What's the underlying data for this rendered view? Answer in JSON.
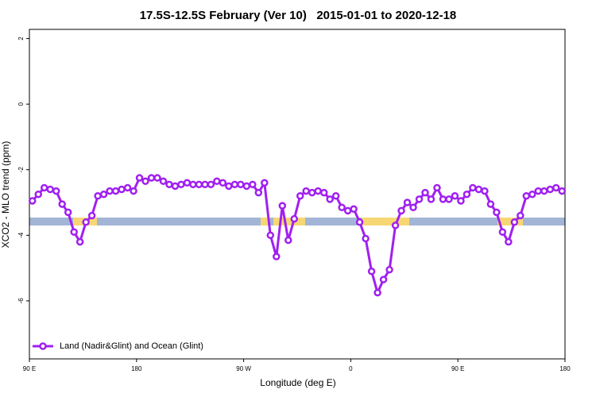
{
  "chart_data": {
    "type": "line",
    "title": "17.5S-12.5S February (Ver 10)   2015-01-01 to 2020-12-18",
    "x_label": "Longitude (deg E)",
    "y_label": "XCO2 - MLO trend (ppm)",
    "xlim": [
      90,
      540
    ],
    "ylim": [
      -7.77,
      2.28
    ],
    "xticks": [
      {
        "value": 90,
        "label": "90 E"
      },
      180,
      {
        "value": 270,
        "label": "90 W"
      },
      {
        "value": 360,
        "label": "0"
      },
      {
        "value": 450,
        "label": "90 E"
      },
      {
        "value": 540,
        "label": "180"
      }
    ],
    "yticks": [
      2,
      0,
      -2,
      -4,
      -6
    ],
    "legend": "lower left",
    "x": [
      92.5,
      97.5,
      102.5,
      107.5,
      112.5,
      117.5,
      122.5,
      127.5,
      132.5,
      137.5,
      142.5,
      147.5,
      152.5,
      157.5,
      162.5,
      167.5,
      172.5,
      177.5,
      182.5,
      187.5,
      192.5,
      197.5,
      202.5,
      207.5,
      212.5,
      217.5,
      222.5,
      227.5,
      232.5,
      237.5,
      242.5,
      247.5,
      252.5,
      257.5,
      262.5,
      267.5,
      272.5,
      277.5,
      282.5,
      287.5,
      292.5,
      297.5,
      302.5,
      307.5,
      312.5,
      317.5,
      322.5,
      327.5,
      332.5,
      337.5,
      342.5,
      347.5,
      352.5,
      357.5,
      362.5,
      367.5,
      372.5,
      377.5,
      382.5,
      387.5,
      392.5,
      397.5,
      402.5,
      407.5,
      412.5,
      417.5,
      422.5,
      427.5,
      432.5,
      437.5,
      442.5,
      447.5,
      452.5,
      457.5,
      462.5,
      467.5,
      472.5,
      477.5,
      482.5,
      487.5,
      492.5,
      497.5,
      502.5,
      507.5,
      512.5,
      517.5,
      522.5,
      527.5,
      532.5,
      537.5
    ],
    "series": [
      {
        "name": "Land (Nadir&Glint) and Ocean (Glint)",
        "color": "#a020f0",
        "values": [
          -2.95,
          -2.75,
          -2.55,
          -2.6,
          -2.65,
          -3.05,
          -3.3,
          -3.9,
          -4.2,
          -3.6,
          -3.4,
          -2.8,
          -2.75,
          -2.65,
          -2.65,
          -2.6,
          -2.55,
          -2.65,
          -2.25,
          -2.35,
          -2.25,
          -2.25,
          -2.35,
          -2.45,
          -2.5,
          -2.45,
          -2.4,
          -2.45,
          -2.45,
          -2.45,
          -2.45,
          -2.35,
          -2.4,
          -2.5,
          -2.45,
          -2.45,
          -2.5,
          -2.45,
          -2.7,
          -2.4,
          -4.0,
          -4.65,
          -3.1,
          -4.15,
          -3.5,
          -2.8,
          -2.65,
          -2.7,
          -2.65,
          -2.7,
          -2.9,
          -2.8,
          -3.15,
          -3.25,
          -3.2,
          -3.6,
          -4.1,
          -5.1,
          -5.75,
          -5.35,
          -5.05,
          -3.7,
          -3.25,
          -3.0,
          -3.15,
          -2.9,
          -2.7,
          -2.9,
          -2.55,
          -2.9,
          -2.9,
          -2.8,
          -2.95,
          -2.75,
          -2.55,
          -2.6,
          -2.65,
          -3.05,
          -3.3,
          -3.9,
          -4.2,
          -3.6,
          -3.4,
          -2.8,
          -2.75,
          -2.65,
          -2.65,
          -2.6,
          -2.55,
          -2.65
        ]
      }
    ]
  }
}
